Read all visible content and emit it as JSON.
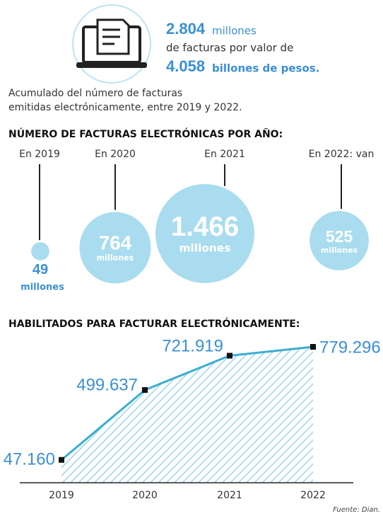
{
  "header": {
    "stat1_value": "2.804",
    "stat1_unit": "millones",
    "stat_middle": "de facturas por valor de",
    "stat2_value": "4.058",
    "stat2_unit": "billones de pesos.",
    "caption": [
      "Acumulado del número de facturas",
      "emitidas electrónicamente, entre 2019 y 2022."
    ]
  },
  "chart_data": [
    {
      "type": "bubble",
      "title": "NÚMERO DE FACTURAS ELECTRÓNICAS POR AÑO:",
      "categories": [
        "En 2019",
        "En 2020",
        "En 2021",
        "En 2022: van"
      ],
      "values": [
        49,
        764,
        1466,
        525
      ],
      "value_labels": [
        "49",
        "764",
        "1.466",
        "525"
      ],
      "unit": "millones",
      "color": "#a9dcef"
    },
    {
      "type": "area",
      "title": "HABILITADOS PARA FACTURAR ELECTRÓNICAMENTE:",
      "categories": [
        "2019",
        "2020",
        "2021",
        "2022"
      ],
      "values": [
        47160,
        499637,
        721919,
        779296
      ],
      "value_labels": [
        "47.160",
        "499.637",
        "721.919",
        "779.296"
      ],
      "color": "#3aaed0"
    }
  ],
  "source": "Fuente: Dian."
}
